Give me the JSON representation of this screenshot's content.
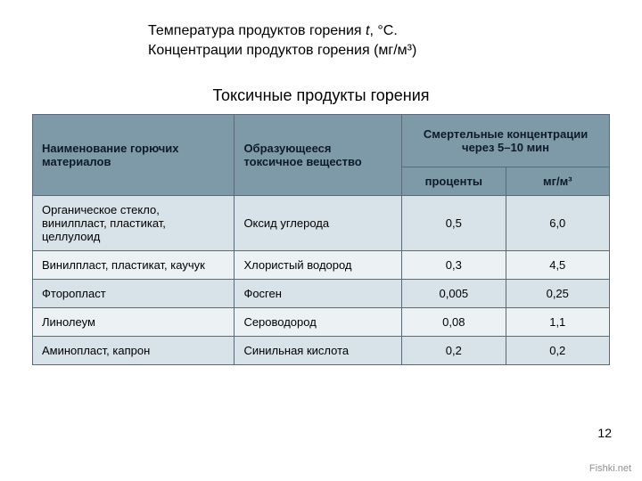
{
  "header": {
    "line1_a": "Температура продуктов горения   ",
    "line1_var": "t",
    "line1_b": ", °С.",
    "line2": "Концентрации продуктов горения  (мг/м³)"
  },
  "subtitle": "Токсичные продукты горения",
  "table": {
    "head": {
      "materials": "Наименование горючих материалов",
      "substance": "Образующееся токсичное вещество",
      "lethal_group": "Смертельные концентрации через 5–10 мин",
      "percent": "проценты",
      "mgm3": "мг/м³"
    },
    "rows": [
      {
        "material": "Органическое стекло, винилпласт, пластикат, целлулоид",
        "substance": "Оксид углерода",
        "percent": "0,5",
        "mgm3": "6,0"
      },
      {
        "material": "Винилпласт, пластикат, каучук",
        "substance": "Хлористый водород",
        "percent": "0,3",
        "mgm3": "4,5"
      },
      {
        "material": "Фторопласт",
        "substance": "Фосген",
        "percent": "0,005",
        "mgm3": "0,25"
      },
      {
        "material": "Линолеум",
        "substance": "Сероводород",
        "percent": "0,08",
        "mgm3": "1,1"
      },
      {
        "material": "Аминопласт, капрон",
        "substance": "Синильная кислота",
        "percent": "0,2",
        "mgm3": "0,2"
      }
    ]
  },
  "page_number": "12",
  "watermark": "Fishki.net",
  "colors": {
    "header_bg": "#7e9aa8",
    "row_odd_bg": "#d7e3e8",
    "row_even_bg": "#ecf2f4",
    "border": "#5a6a7a",
    "text": "#0d1a2a"
  }
}
